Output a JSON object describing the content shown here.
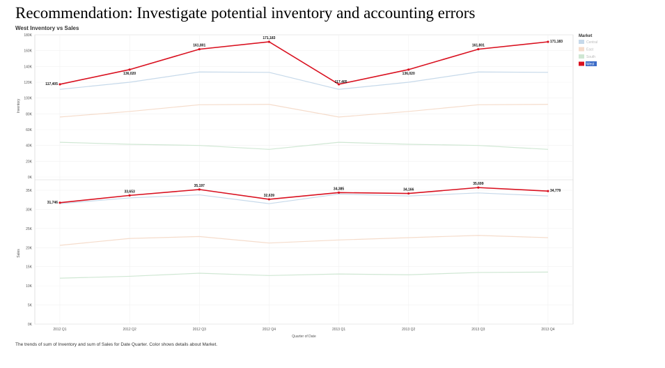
{
  "headline": "Recommendation: Investigate potential inventory and accounting errors",
  "chart_title": "West Inventory vs Sales",
  "caption": "The trends of sum of Inventory and sum of Sales for Date Quarter.  Color shows details about Market.",
  "chart_data": {
    "type": "line",
    "x": [
      "2012 Q1",
      "2012 Q2",
      "2012 Q3",
      "2012 Q4",
      "2013 Q1",
      "2013 Q2",
      "2013 Q3",
      "2013 Q4"
    ],
    "xlabel": "Quarter of Date",
    "legend": {
      "title": "Market",
      "placement": "top-right",
      "items": [
        "Central",
        "East",
        "South",
        "West"
      ],
      "highlighted": "West"
    },
    "panels": [
      {
        "ylabel": "Inventory",
        "ylim": [
          0,
          180000
        ],
        "yticks": [
          0,
          20000,
          40000,
          60000,
          80000,
          100000,
          120000,
          140000,
          160000,
          180000
        ],
        "ytick_labels": [
          "0K",
          "20K",
          "40K",
          "60K",
          "80K",
          "100K",
          "120K",
          "140K",
          "160K",
          "180K"
        ],
        "series": [
          {
            "name": "Central",
            "color": "#c6d9ea",
            "values": [
              111000,
              120000,
              133000,
              132500,
              111000,
              120000,
              133000,
              132500
            ]
          },
          {
            "name": "East",
            "color": "#f5dccb",
            "values": [
              76000,
              83000,
              91500,
              92000,
              76000,
              83000,
              91500,
              92000
            ]
          },
          {
            "name": "South",
            "color": "#cfe7d3",
            "values": [
              44000,
              41500,
              40000,
              35000,
              44000,
              41500,
              40000,
              35000
            ]
          },
          {
            "name": "West",
            "color": "#d9101f",
            "values": [
              117405,
              136020,
              161801,
              171183,
              117405,
              136020,
              161801,
              171183
            ],
            "labels": [
              "117,405",
              "136,020",
              "161,801",
              "171,183",
              "117,405",
              "136,020",
              "161,801",
              "171,183"
            ]
          }
        ]
      },
      {
        "ylabel": "Sales",
        "ylim": [
          0,
          37000
        ],
        "yticks": [
          0,
          5000,
          10000,
          15000,
          20000,
          25000,
          30000,
          35000
        ],
        "ytick_labels": [
          "0K",
          "5K",
          "10K",
          "15K",
          "20K",
          "25K",
          "30K",
          "35K"
        ],
        "series": [
          {
            "name": "Central",
            "color": "#c6d9ea",
            "values": [
              31500,
              33000,
              33800,
              31500,
              34000,
              33500,
              34300,
              33500
            ]
          },
          {
            "name": "East",
            "color": "#f5dccb",
            "values": [
              20600,
              22400,
              22900,
              21200,
              22000,
              22600,
              23200,
              22600
            ]
          },
          {
            "name": "South",
            "color": "#cfe7d3",
            "values": [
              12000,
              12500,
              13300,
              12700,
              13100,
              12900,
              13500,
              13600
            ]
          },
          {
            "name": "West",
            "color": "#d9101f",
            "values": [
              31746,
              33653,
              35197,
              32639,
              34385,
              34166,
              35699,
              34779
            ],
            "labels": [
              "31,746",
              "33,653",
              "35,197",
              "32,639",
              "34,385",
              "34,166",
              "35,699",
              "34,779"
            ]
          }
        ]
      }
    ]
  }
}
